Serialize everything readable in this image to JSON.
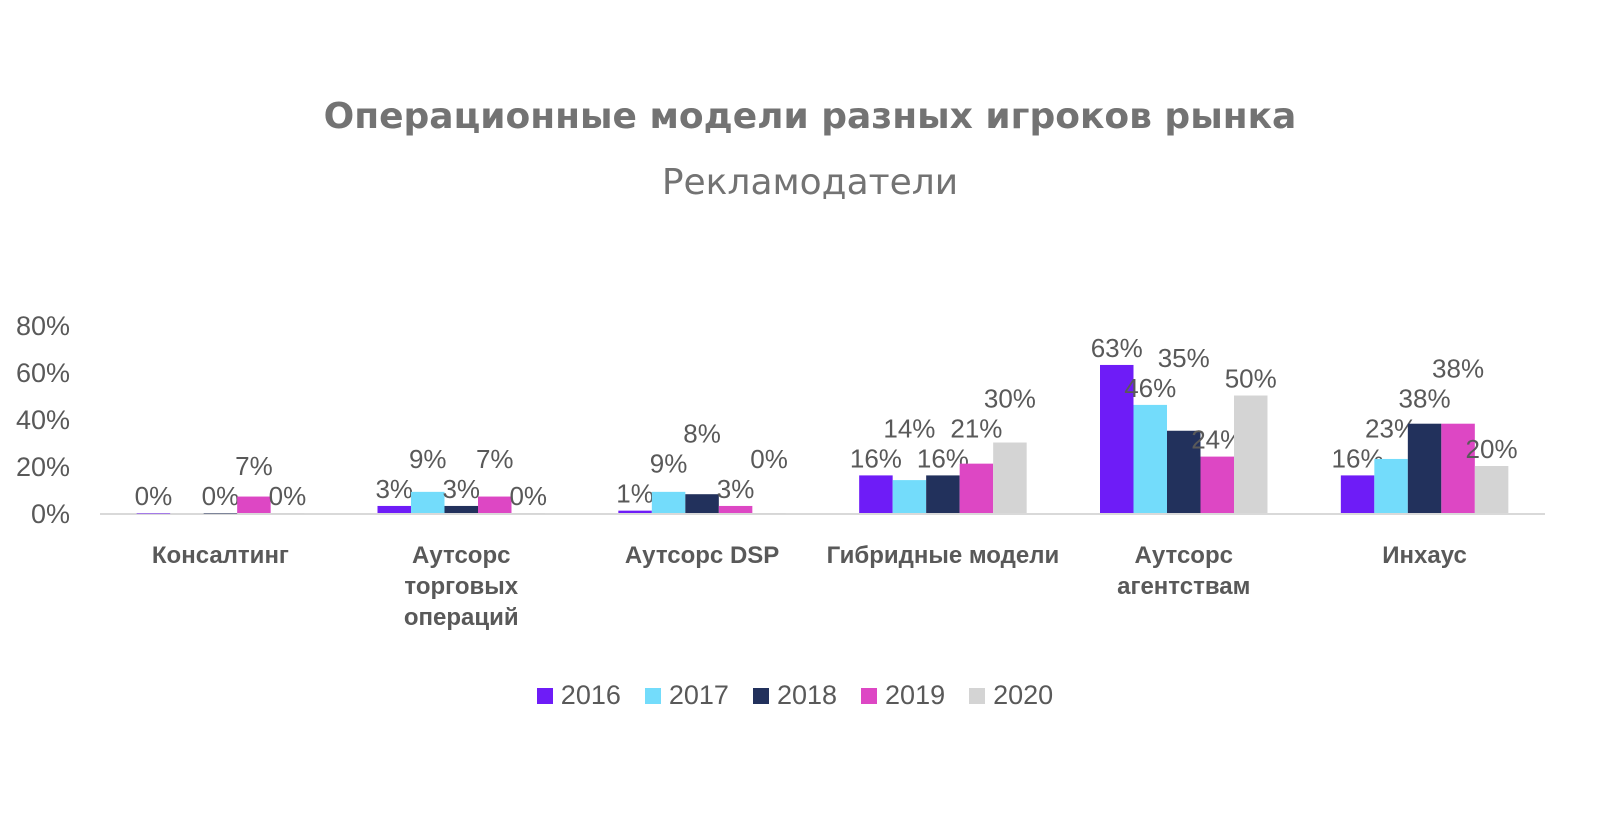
{
  "chart_data": {
    "type": "bar",
    "title": "Операционные модели разных игроков рынка",
    "subtitle": "Рекламодатели",
    "categories": [
      [
        "Консалтинг"
      ],
      [
        "Аутсорс",
        "торговых",
        "операций"
      ],
      [
        "Аутсорс DSP"
      ],
      [
        "Гибридные модели"
      ],
      [
        "Аутсорс",
        "агентствам"
      ],
      [
        "Инхаус"
      ]
    ],
    "ylim": [
      0,
      80
    ],
    "yticks": [
      "0%",
      "20%",
      "40%",
      "60%",
      "80%"
    ],
    "grid": false,
    "legend_position": "bottom",
    "series": [
      {
        "name": "2016",
        "color": "#6e1cf7",
        "values": [
          0,
          3,
          1,
          16,
          63,
          16
        ]
      },
      {
        "name": "2017",
        "color": "#73dcfb",
        "values": [
          null,
          9,
          9,
          14,
          46,
          23
        ]
      },
      {
        "name": "2018",
        "color": "#22315c",
        "values": [
          0,
          3,
          8,
          16,
          35,
          38
        ]
      },
      {
        "name": "2019",
        "color": "#dd47c4",
        "values": [
          7,
          7,
          3,
          21,
          24,
          38
        ]
      },
      {
        "name": "2020",
        "color": "#d4d4d4",
        "values": [
          0,
          0,
          0,
          30,
          50,
          20
        ]
      }
    ]
  }
}
